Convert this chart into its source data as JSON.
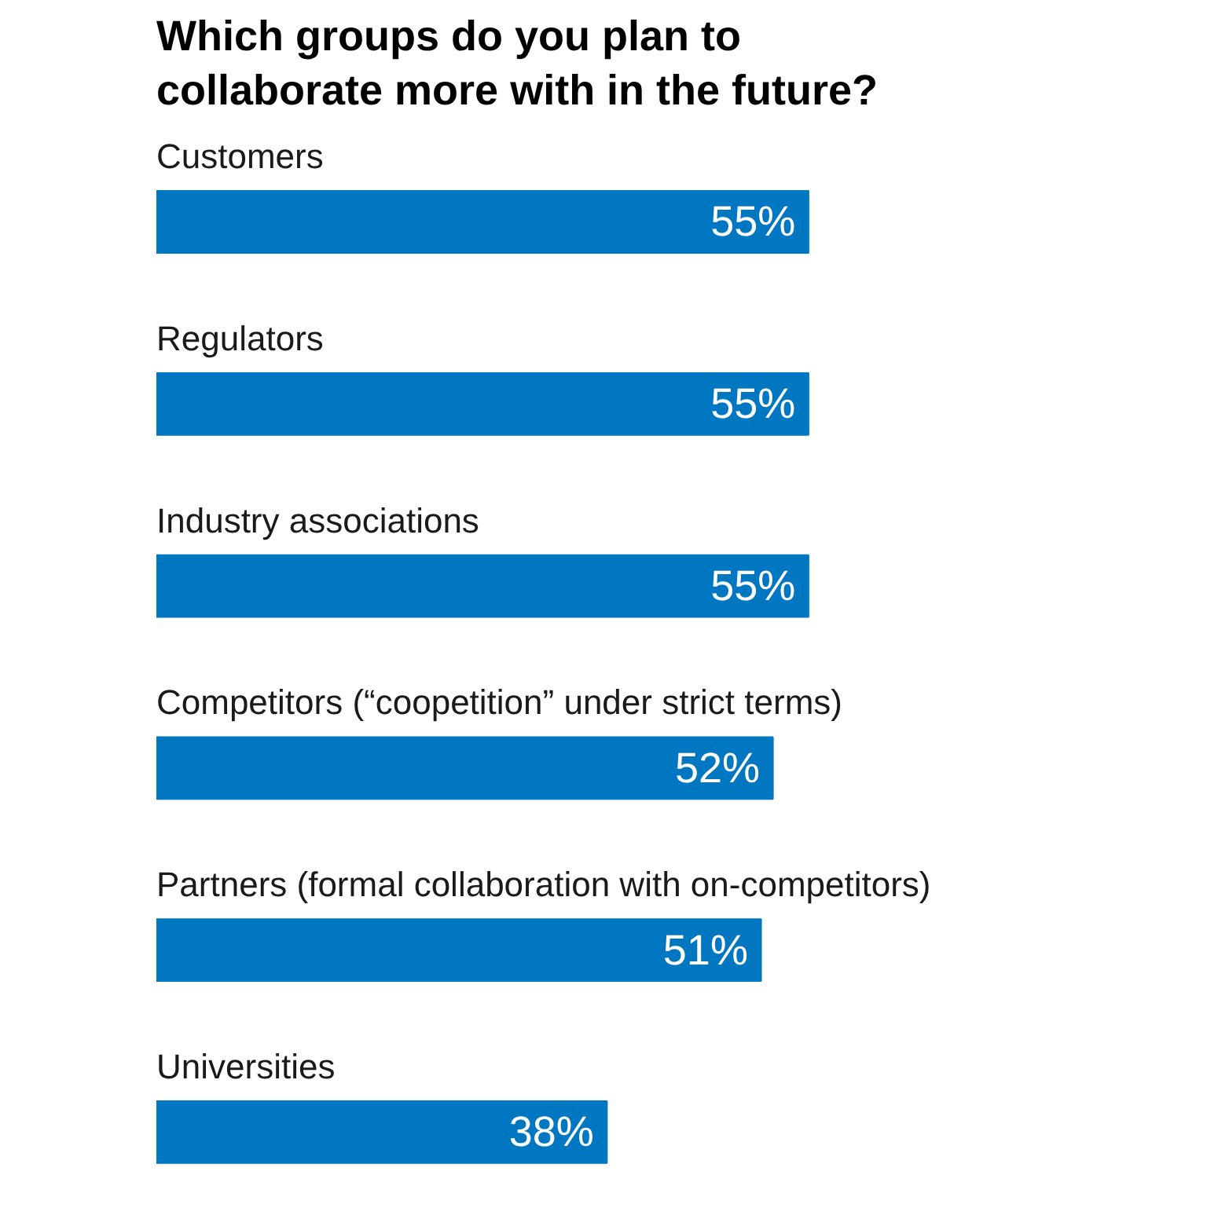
{
  "chart_data": {
    "type": "bar",
    "orientation": "horizontal",
    "title": "Which groups do you plan to collaborate more with in the future?",
    "categories": [
      "Customers",
      "Regulators",
      "Industry associations",
      "Competitors (“coopetition” under strict terms)",
      "Partners (formal collaboration with on-competitors)",
      "Universities"
    ],
    "values": [
      55,
      55,
      55,
      52,
      51,
      38
    ],
    "value_labels": [
      "55%",
      "55%",
      "55%",
      "52%",
      "51%",
      "38%"
    ],
    "color": "#0077c0",
    "tick_labels": false
  }
}
